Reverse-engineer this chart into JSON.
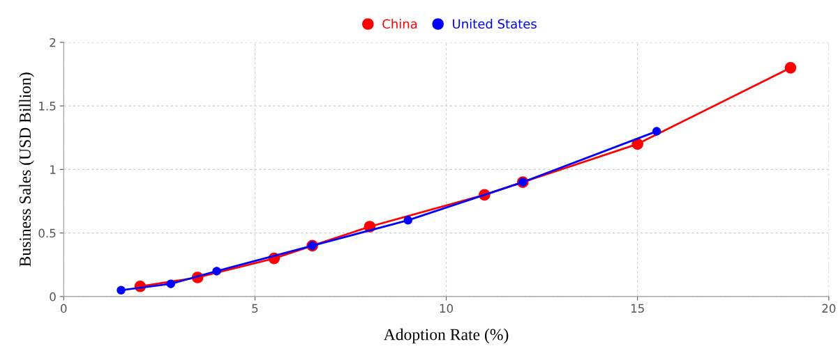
{
  "chart_data": {
    "type": "line",
    "xlabel": "Adoption Rate (%)",
    "ylabel": "Business Sales (USD Billion)",
    "xlim": [
      0,
      20
    ],
    "xticks": [
      0,
      5,
      10,
      15,
      20
    ],
    "ylim": [
      0,
      2
    ],
    "yticks": [
      0,
      0.5,
      1,
      1.5,
      2
    ],
    "grid": true,
    "legend": "top",
    "marker": "circle",
    "line_style": "solid",
    "series": [
      {
        "name": "China",
        "color": "#ff0000",
        "x": [
          2,
          3.5,
          5.5,
          6.5,
          8,
          11,
          12,
          15,
          19
        ],
        "values": [
          0.08,
          0.15,
          0.3,
          0.4,
          0.55,
          0.8,
          0.9,
          1.2,
          1.8
        ]
      },
      {
        "name": "United States",
        "color": "#0000ff",
        "x": [
          1.5,
          2.8,
          4,
          6.5,
          9,
          12,
          15.5
        ],
        "values": [
          0.05,
          0.1,
          0.2,
          0.4,
          0.6,
          0.9,
          1.3
        ]
      }
    ]
  }
}
